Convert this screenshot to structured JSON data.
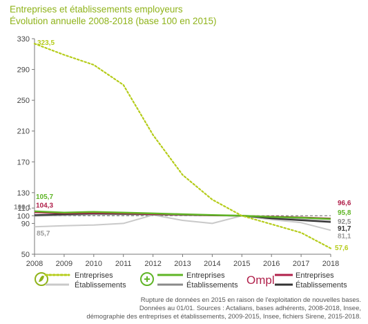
{
  "header": {
    "title": "Entreprises et établissements employeurs",
    "subtitle": "Évolution annuelle 2008-2018 (base 100 en 2015)"
  },
  "chart_data": {
    "type": "line",
    "title": "Entreprises et établissements employeurs",
    "subtitle": "Évolution annuelle 2008-2018 (base 100 en 2015)",
    "x": [
      "2008",
      "2009",
      "2010",
      "2011",
      "2012",
      "2013",
      "2014",
      "2015",
      "2016",
      "2017",
      "2018"
    ],
    "ylim": [
      50,
      330
    ],
    "yticks": [
      "50",
      "90",
      "100",
      "110",
      "130",
      "170",
      "210",
      "250",
      "290",
      "330"
    ],
    "reference_line": 100,
    "series": [
      {
        "group": "Actalians",
        "name": "Entreprises",
        "color": "#b5cc1a",
        "style": "dotted",
        "width": 2.2,
        "values": [
          323.5,
          309,
          296,
          270,
          205,
          153,
          121,
          100,
          89,
          78,
          57.6
        ],
        "labels": [
          {
            "index": 0,
            "text": "323,5",
            "pos": "right"
          },
          {
            "index": 10,
            "text": "57,6",
            "pos": "right"
          }
        ]
      },
      {
        "group": "Actalians",
        "name": "Établissements",
        "color": "#c9c9c9",
        "style": "solid",
        "width": 2,
        "values": [
          85.7,
          87,
          88,
          90,
          101,
          94,
          90,
          100,
          95,
          91,
          81.1
        ],
        "labels": [
          {
            "index": 0,
            "text": "85,7",
            "pos": "below"
          },
          {
            "index": 10,
            "text": "81,1",
            "pos": "right"
          }
        ]
      },
      {
        "group": "Insee",
        "name": "Entreprises",
        "color": "#5fb526",
        "style": "solid",
        "width": 2.5,
        "values": [
          105.7,
          104,
          105,
          104,
          103,
          102,
          101,
          100,
          98.5,
          97.5,
          95.8
        ],
        "labels": [
          {
            "index": 0,
            "text": "105,7",
            "pos": "above"
          },
          {
            "index": 10,
            "text": "95,8",
            "pos": "right"
          }
        ]
      },
      {
        "group": "Insee",
        "name": "Établissements",
        "color": "#8a8a8a",
        "style": "solid",
        "width": 2.5,
        "values": [
          100.1,
          101,
          102,
          102,
          101.5,
          101,
          100.5,
          100,
          97,
          95,
          92.5
        ],
        "labels": [
          {
            "index": 0,
            "text": "100,1",
            "pos": "left"
          },
          {
            "index": 10,
            "text": "92,5",
            "pos": "right"
          }
        ]
      },
      {
        "group": "Ompl",
        "name": "Entreprises",
        "color": "#b01f4a",
        "style": "solid",
        "width": 2,
        "values": [
          104.3,
          103,
          103.5,
          103,
          102,
          101.5,
          100.5,
          100,
          99,
          98,
          96.6
        ],
        "labels": [
          {
            "index": 0,
            "text": "104,3",
            "pos": "above"
          },
          {
            "index": 10,
            "text": "96,6",
            "pos": "right"
          }
        ]
      },
      {
        "group": "Ompl",
        "name": "Établissements",
        "color": "#333333",
        "style": "solid",
        "width": 2,
        "values": [
          101,
          102,
          103,
          102.5,
          102,
          101.5,
          100.5,
          100,
          96.5,
          94,
          91.7
        ],
        "labels": [
          {
            "index": 10,
            "text": "91,7",
            "pos": "right"
          }
        ]
      }
    ],
    "grid": false,
    "legend": {
      "placement": "bottom",
      "groups": [
        {
          "icon": "actalians-logo-icon",
          "items": [
            "Entreprises",
            "Établissements"
          ]
        },
        {
          "icon": "insee-plus-logo-icon",
          "items": [
            "Entreprises",
            "Établissements"
          ]
        },
        {
          "icon": "ompl-logo-icon",
          "logo_text": "Ompl",
          "items": [
            "Entreprises",
            "Établissements"
          ]
        }
      ]
    }
  },
  "source": {
    "line1": "Rupture de données en 2015 en raison de l'exploitation de nouvelles bases.",
    "line2": "Données au 01/01. Sources : Actalians, bases adhérents, 2008-2018, Insee,",
    "line3": "démographie des entreprises et établissements, 2009-2015, Insee, fichiers Sirene, 2015-2018."
  }
}
